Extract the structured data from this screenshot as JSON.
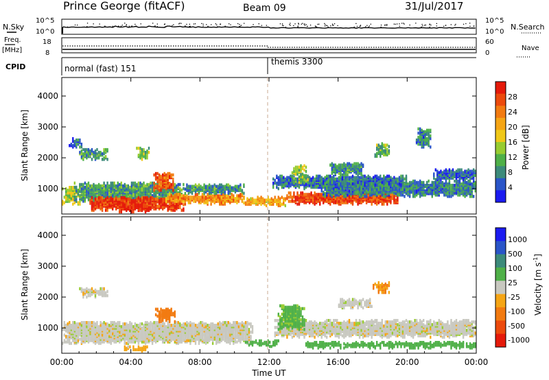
{
  "header": {
    "station": "Prince George (fitACF)",
    "beam": "Beam 09",
    "date": "31/Jul/2017"
  },
  "top_panels": {
    "nsky_label": "N.Sky",
    "nsky_ticks": [
      "10^5",
      "10^0"
    ],
    "nsearch_label": "N.Search",
    "nsearch_ticks": [
      "10^5",
      "10^0"
    ],
    "freq_label_1": "Freq.",
    "freq_label_2": "[MHz]",
    "freq_ticks": [
      "18",
      "8"
    ],
    "nave_label": "Nave",
    "nave_ticks": [
      "60",
      "0"
    ],
    "cpid_label": "CPID",
    "cpid_modes": [
      {
        "name": "normal (fast) 151",
        "start_hour": 0
      },
      {
        "name": "themis 3300",
        "start_hour": 12
      }
    ]
  },
  "colors": {
    "power_scale": [
      "#1b1bf0",
      "#2a55c8",
      "#3c8a7a",
      "#4fb048",
      "#98cc30",
      "#f0c818",
      "#f5a515",
      "#f27a10",
      "#ec4a0c",
      "#e51a0a"
    ],
    "velocity_scale": [
      "#e51a0a",
      "#ec4a0c",
      "#f27a10",
      "#f5a515",
      "#f0c818",
      "#c8c8c0",
      "#c8c8c0",
      "#4fb048",
      "#3c8a7a",
      "#2a55c8",
      "#1b1bf0"
    ],
    "gray": "#c8c8c0"
  },
  "chart_data": [
    {
      "type": "heatmap",
      "title": "Power",
      "ylabel": "Slant Range [km]",
      "xlabel": "Time UT",
      "x_range_hours": [
        0,
        24
      ],
      "ylim": [
        180,
        4600
      ],
      "yticks": [
        "1000",
        "2000",
        "3000",
        "4000"
      ],
      "xticks": [
        "00:00",
        "04:00",
        "08:00",
        "12:00",
        "16:00",
        "20:00",
        "00:00"
      ],
      "colorbar": {
        "label": "Power [dB]",
        "ticks": [
          "4",
          "8",
          "12",
          "16",
          "20",
          "24",
          "28"
        ],
        "range": [
          0,
          30
        ]
      },
      "regions": [
        {
          "t0": 0,
          "t1": 1,
          "r0": 450,
          "r1": 1000,
          "v": 14
        },
        {
          "t0": 0.7,
          "t1": 7,
          "r0": 500,
          "r1": 1150,
          "v": 9
        },
        {
          "t0": 1.5,
          "t1": 7,
          "r0": 250,
          "r1": 700,
          "v": 27
        },
        {
          "t0": 3.3,
          "t1": 5.2,
          "r0": 200,
          "r1": 450,
          "v": 29
        },
        {
          "t0": 5.3,
          "t1": 6.4,
          "r0": 900,
          "r1": 1450,
          "v": 25
        },
        {
          "t0": 6,
          "t1": 10.5,
          "r0": 450,
          "r1": 800,
          "v": 21
        },
        {
          "t0": 7,
          "t1": 10.5,
          "r0": 800,
          "r1": 1100,
          "v": 8
        },
        {
          "t0": 10.5,
          "t1": 13,
          "r0": 400,
          "r1": 700,
          "v": 19
        },
        {
          "t0": 12.2,
          "t1": 20,
          "r0": 950,
          "r1": 1400,
          "v": 6
        },
        {
          "t0": 13,
          "t1": 19.5,
          "r0": 450,
          "r1": 850,
          "v": 26
        },
        {
          "t0": 15,
          "t1": 24,
          "r0": 700,
          "r1": 1200,
          "v": 7
        },
        {
          "t0": 13.3,
          "t1": 14.2,
          "r0": 1150,
          "r1": 1700,
          "v": 13
        },
        {
          "t0": 1,
          "t1": 2.7,
          "r0": 1900,
          "r1": 2250,
          "v": 9
        },
        {
          "t0": 4.3,
          "t1": 5,
          "r0": 1900,
          "r1": 2300,
          "v": 13
        },
        {
          "t0": 18,
          "t1": 19,
          "r0": 2000,
          "r1": 2450,
          "v": 11
        },
        {
          "t0": 21.5,
          "t1": 24,
          "r0": 1200,
          "r1": 1600,
          "v": 5
        },
        {
          "t0": 0.4,
          "t1": 1.2,
          "r0": 2300,
          "r1": 2600,
          "v": 5
        },
        {
          "t0": 15.5,
          "t1": 17.5,
          "r0": 1400,
          "r1": 1800,
          "v": 8
        },
        {
          "t0": 20.5,
          "t1": 21.4,
          "r0": 2300,
          "r1": 2900,
          "v": 7
        }
      ]
    },
    {
      "type": "heatmap",
      "title": "Velocity",
      "ylabel": "Slant Range [km]",
      "xlabel": "Time UT",
      "x_range_hours": [
        0,
        24
      ],
      "ylim": [
        180,
        4600
      ],
      "yticks": [
        "1000",
        "2000",
        "3000",
        "4000"
      ],
      "xticks": [
        "00:00",
        "04:00",
        "08:00",
        "12:00",
        "16:00",
        "20:00",
        "00:00"
      ],
      "colorbar": {
        "label_main": "Velocity [m s",
        "label_sup": "-1",
        "label_end": "]",
        "ticks": [
          "1000",
          "500",
          "100",
          "25",
          "-25",
          "-100",
          "-500",
          "-1000"
        ]
      },
      "regions": [
        {
          "t0": 0,
          "t1": 11,
          "r0": 450,
          "r1": 1150,
          "v": 0
        },
        {
          "t0": 12.3,
          "t1": 24,
          "r0": 650,
          "r1": 1200,
          "v": 0
        },
        {
          "t0": 5.4,
          "t1": 6.5,
          "r0": 1150,
          "r1": 1600,
          "v": -200
        },
        {
          "t0": 3.5,
          "t1": 5,
          "r0": 200,
          "r1": 350,
          "v": -50
        },
        {
          "t0": 10.5,
          "t1": 12.5,
          "r0": 350,
          "r1": 550,
          "v": 150
        },
        {
          "t0": 12.5,
          "t1": 14,
          "r0": 900,
          "r1": 1700,
          "v": 120
        },
        {
          "t0": 14,
          "t1": 24,
          "r0": 300,
          "r1": 500,
          "v": 130
        },
        {
          "t0": 1,
          "t1": 2.7,
          "r0": 1950,
          "r1": 2250,
          "v": 0
        },
        {
          "t0": 18,
          "t1": 19,
          "r0": 2100,
          "r1": 2450,
          "v": -100
        },
        {
          "t0": 16,
          "t1": 18,
          "r0": 1600,
          "r1": 1900,
          "v": 0
        }
      ]
    }
  ]
}
